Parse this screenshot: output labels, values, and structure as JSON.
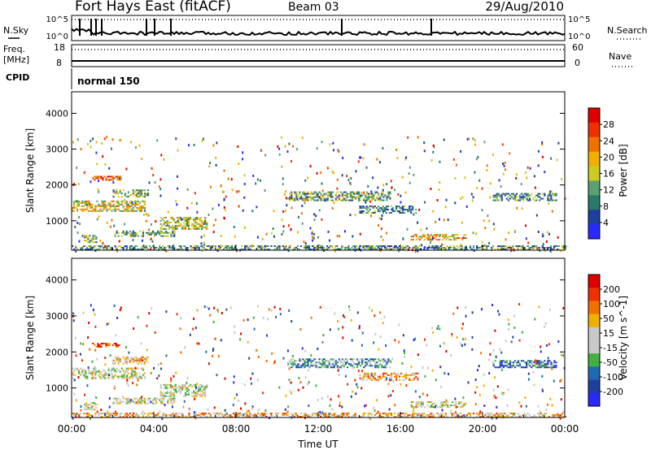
{
  "header": {
    "title": "Fort Hays East (fitACF)",
    "beam": "Beam 03",
    "date": "29/Aug/2010"
  },
  "strip_panels": {
    "nsky_label": "N.Sky",
    "nsky_tick_top": "10^5",
    "nsky_tick_bottom": "10^0",
    "nsearch_label": "N.Search",
    "freq_label_line1": "Freq.",
    "freq_label_line2": "[MHz]",
    "freq_ticks": [
      "18",
      "8"
    ],
    "nave_label": "Nave",
    "nave_ticks": [
      "60",
      "0"
    ],
    "cpid_label": "CPID",
    "cpid_value": "normal 150"
  },
  "colors": {
    "power_scale": [
      "#2a2aff",
      "#1e3fa0",
      "#2a7a6a",
      "#5aa070",
      "#cccc20",
      "#f0b000",
      "#f07000",
      "#f03000",
      "#e00000"
    ],
    "velocity_scale": [
      "#2a2aff",
      "#1e3fa0",
      "#1e6ab0",
      "#40b040",
      "#c8c8c8",
      "#c8c8c8",
      "#f0b000",
      "#f07000",
      "#f03000",
      "#e00000"
    ],
    "ground_scatter": "#c0c0c0"
  },
  "chart_data": [
    {
      "type": "heatmap",
      "name": "power",
      "ylabel": "Slant Range [km]",
      "xlabel": "",
      "x_ticks": [
        "00:00",
        "04:00",
        "08:00",
        "12:00",
        "16:00",
        "20:00",
        "00:00"
      ],
      "y_ticks": [
        1000,
        2000,
        3000,
        4000
      ],
      "xlim_hours": [
        0,
        24
      ],
      "ylim_km": [
        180,
        4600
      ],
      "colorbar": {
        "label": "Power [dB]",
        "ticks": [
          4,
          8,
          12,
          16,
          20,
          24,
          28
        ]
      },
      "echo_regions": [
        {
          "t0": 0.0,
          "t1": 3.6,
          "r0": 1250,
          "r1": 1550,
          "level": 0.55
        },
        {
          "t0": 0.6,
          "t1": 1.2,
          "r0": 380,
          "r1": 600,
          "level": 0.4
        },
        {
          "t0": 1.0,
          "t1": 2.4,
          "r0": 2120,
          "r1": 2230,
          "level": 0.8
        },
        {
          "t0": 2.0,
          "t1": 3.7,
          "r0": 1650,
          "r1": 1850,
          "level": 0.4
        },
        {
          "t0": 2.0,
          "t1": 5.0,
          "r0": 550,
          "r1": 700,
          "level": 0.35
        },
        {
          "t0": 4.3,
          "t1": 6.6,
          "r0": 750,
          "r1": 1100,
          "level": 0.5
        },
        {
          "t0": 10.5,
          "t1": 15.5,
          "r0": 1550,
          "r1": 1800,
          "level": 0.35
        },
        {
          "t0": 14.0,
          "t1": 16.8,
          "r0": 1200,
          "r1": 1400,
          "level": 0.25
        },
        {
          "t0": 16.5,
          "t1": 19.2,
          "r0": 450,
          "r1": 620,
          "level": 0.6
        },
        {
          "t0": 20.5,
          "t1": 23.6,
          "r0": 1550,
          "r1": 1750,
          "level": 0.3
        },
        {
          "t0": 0.0,
          "t1": 24.0,
          "r0": 180,
          "r1": 280,
          "level": 0.3
        }
      ]
    },
    {
      "type": "heatmap",
      "name": "velocity",
      "ylabel": "Slant Range [km]",
      "xlabel": "Time UT",
      "x_ticks": [
        "00:00",
        "04:00",
        "08:00",
        "12:00",
        "16:00",
        "20:00",
        "00:00"
      ],
      "y_ticks": [
        1000,
        2000,
        3000,
        4000
      ],
      "xlim_hours": [
        0,
        24
      ],
      "ylim_km": [
        180,
        4600
      ],
      "colorbar": {
        "label": "Velocity [m s^-1]",
        "ticks": [
          200,
          100,
          50,
          15,
          -15,
          -50,
          -100,
          -200
        ]
      },
      "echo_regions": [
        {
          "t0": 0.0,
          "t1": 3.6,
          "r0": 1250,
          "r1": 1550,
          "level": 0.5
        },
        {
          "t0": 0.6,
          "t1": 1.2,
          "r0": 380,
          "r1": 600,
          "level": 0.5
        },
        {
          "t0": 1.0,
          "t1": 2.4,
          "r0": 2120,
          "r1": 2230,
          "level": 0.85
        },
        {
          "t0": 2.0,
          "t1": 3.7,
          "r0": 1650,
          "r1": 1850,
          "level": 0.6
        },
        {
          "t0": 2.0,
          "t1": 5.0,
          "r0": 550,
          "r1": 700,
          "level": 0.5
        },
        {
          "t0": 4.3,
          "t1": 6.6,
          "r0": 750,
          "r1": 1100,
          "level": 0.5
        },
        {
          "t0": 10.5,
          "t1": 15.5,
          "r0": 1550,
          "r1": 1800,
          "level": 0.3
        },
        {
          "t0": 14.0,
          "t1": 16.8,
          "r0": 1200,
          "r1": 1400,
          "level": 0.7
        },
        {
          "t0": 16.5,
          "t1": 19.2,
          "r0": 450,
          "r1": 620,
          "level": 0.5
        },
        {
          "t0": 20.5,
          "t1": 23.6,
          "r0": 1550,
          "r1": 1750,
          "level": 0.2
        },
        {
          "t0": 0.0,
          "t1": 24.0,
          "r0": 180,
          "r1": 280,
          "level": 0.65
        }
      ]
    }
  ]
}
